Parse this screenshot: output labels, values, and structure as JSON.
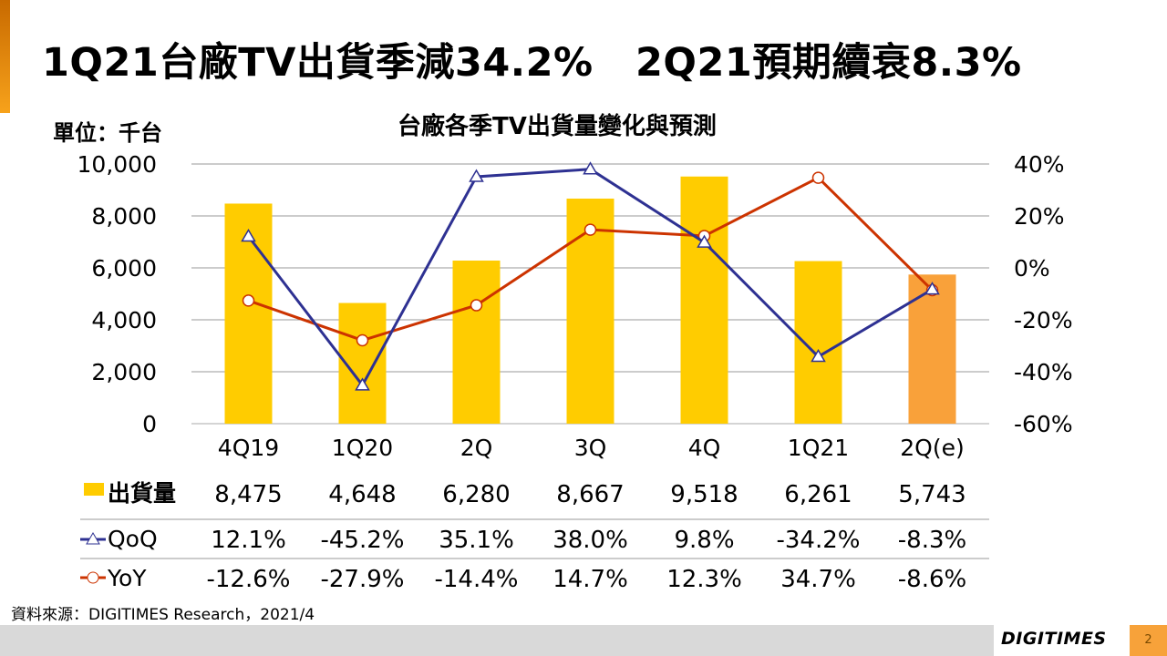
{
  "title": "1Q21台廠TV出貨季減34.2%   2Q21預期續衰8.3%",
  "unit_label": "單位：千台",
  "source": "資料來源：DIGITIMES Research，2021/4",
  "logo": "DIGITIMES",
  "page_number": "2",
  "chart_data": {
    "type": "bar+line",
    "title": "台廠各季TV出貨量變化與預測",
    "categories": [
      "4Q19",
      "1Q20",
      "2Q",
      "3Q",
      "4Q",
      "1Q21",
      "2Q(e)"
    ],
    "left_axis": {
      "ylim": [
        0,
        10000
      ],
      "ticks": [
        "0",
        "2,000",
        "4,000",
        "6,000",
        "8,000",
        "10,000"
      ],
      "tick_values": [
        0,
        2000,
        4000,
        6000,
        8000,
        10000
      ]
    },
    "right_axis": {
      "ylim": [
        -60,
        40
      ],
      "ticks": [
        "-60%",
        "-40%",
        "-20%",
        "0%",
        "20%",
        "40%"
      ],
      "tick_values": [
        -60,
        -40,
        -20,
        0,
        20,
        40
      ]
    },
    "grid": true,
    "series": [
      {
        "name": "出貨量",
        "type": "bar",
        "axis": "left",
        "values": [
          8475,
          4648,
          6280,
          8667,
          9518,
          6261,
          5743
        ],
        "labels": [
          "8,475",
          "4,648",
          "6,280",
          "8,667",
          "9,518",
          "6,261",
          "5,743"
        ],
        "color": "#FFCC00",
        "forecast_color": "#F9A13A"
      },
      {
        "name": "QoQ",
        "type": "line",
        "axis": "right",
        "values": [
          12.1,
          -45.2,
          35.1,
          38.0,
          9.8,
          -34.2,
          -8.3
        ],
        "labels": [
          "12.1%",
          "-45.2%",
          "35.1%",
          "38.0%",
          "9.8%",
          "-34.2%",
          "-8.3%"
        ],
        "color": "#2E3192",
        "marker": "triangle"
      },
      {
        "name": "YoY",
        "type": "line",
        "axis": "right",
        "values": [
          -12.6,
          -27.9,
          -14.4,
          14.7,
          12.3,
          34.7,
          -8.6
        ],
        "labels": [
          "-12.6%",
          "-27.9%",
          "-14.4%",
          "14.7%",
          "12.3%",
          "34.7%",
          "-8.6%"
        ],
        "color": "#CC3300",
        "marker": "circle"
      }
    ]
  }
}
